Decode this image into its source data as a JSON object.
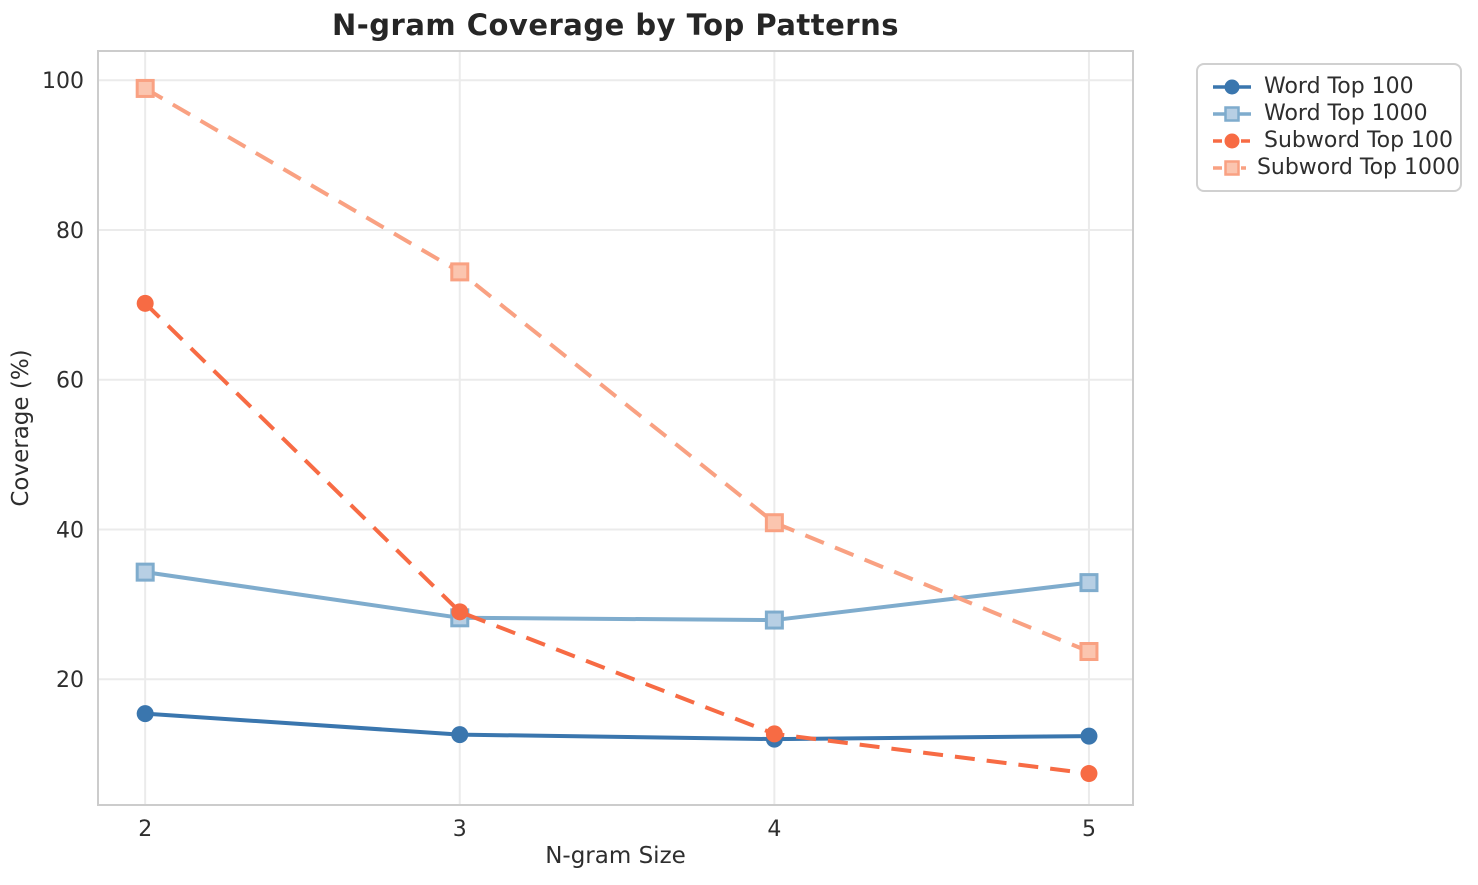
{
  "chart_data": {
    "type": "line",
    "title": "N-gram Coverage by Top Patterns",
    "xlabel": "N-gram Size",
    "ylabel": "Coverage (%)",
    "x": [
      2,
      3,
      4,
      5
    ],
    "xtick_labels": [
      "2",
      "3",
      "4",
      "5"
    ],
    "yticks": [
      20,
      40,
      60,
      80,
      100
    ],
    "ytick_labels": [
      "20",
      "40",
      "60",
      "80",
      "100"
    ],
    "xlim": [
      1.85,
      5.14
    ],
    "ylim": [
      3.2,
      103.9
    ],
    "grid": true,
    "legend_position": "outside-upper-right",
    "series": [
      {
        "name": "Word Top 100",
        "values": [
          15.4,
          12.6,
          12.0,
          12.4
        ],
        "color": "#3a76ae",
        "line_style": "solid",
        "marker": "circle"
      },
      {
        "name": "Word Top 1000",
        "values": [
          34.3,
          28.2,
          27.9,
          32.9
        ],
        "color": "#7faccd",
        "marker_fill": "#b7cfe4",
        "line_style": "solid",
        "marker": "square"
      },
      {
        "name": "Subword Top 100",
        "values": [
          70.2,
          29.0,
          12.7,
          7.4
        ],
        "color": "#f76b44",
        "line_style": "dashed",
        "marker": "circle"
      },
      {
        "name": "Subword Top 1000",
        "values": [
          98.9,
          74.4,
          40.9,
          23.7
        ],
        "color": "#f9a182",
        "marker_fill": "#fbc5af",
        "line_style": "dashed",
        "marker": "square"
      }
    ]
  },
  "style": {
    "background": "#ffffff",
    "grid_color": "#ebebeb",
    "spine_color": "#cccccc",
    "tick_text_color": "#2e2e2e",
    "title_color": "#262626"
  }
}
